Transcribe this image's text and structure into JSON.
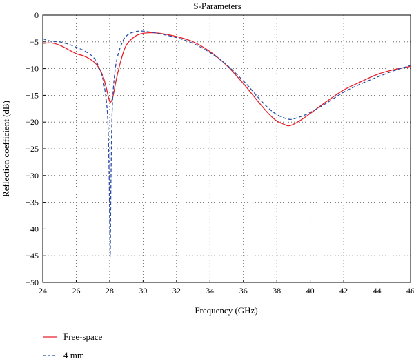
{
  "chart_data": {
    "type": "line",
    "title": "S-Parameters",
    "xlabel": "Frequency (GHz)",
    "ylabel": "Reflection coefficient (dB)",
    "xlim": [
      24,
      46
    ],
    "ylim": [
      -50,
      0
    ],
    "xticks": [
      24,
      26,
      28,
      30,
      32,
      34,
      36,
      38,
      40,
      42,
      44,
      46
    ],
    "yticks": [
      0,
      -5,
      -10,
      -15,
      -20,
      -25,
      -30,
      -35,
      -40,
      -45,
      -50
    ],
    "xtick_labels": [
      "24",
      "26",
      "28",
      "30",
      "32",
      "34",
      "36",
      "38",
      "40",
      "42",
      "44",
      "46"
    ],
    "ytick_labels": [
      "0",
      "−5",
      "−10",
      "−15",
      "−20",
      "−25",
      "−30",
      "−35",
      "−40",
      "−45",
      "−50"
    ],
    "grid": true,
    "legend_position": "bottom-left",
    "series": [
      {
        "name": "Free-space",
        "color": "#e8202a",
        "dash": "solid",
        "x": [
          24,
          24.5,
          25,
          25.5,
          26,
          26.5,
          27,
          27.3,
          27.6,
          27.8,
          27.95,
          28.05,
          28.2,
          28.4,
          28.7,
          29,
          29.5,
          30,
          30.5,
          31,
          32,
          33,
          34,
          35,
          36,
          36.5,
          37,
          37.5,
          38,
          38.5,
          38.7,
          39,
          39.5,
          40,
          41,
          42,
          43,
          44,
          45,
          46
        ],
        "y": [
          -5.3,
          -5.2,
          -5.6,
          -6.4,
          -7.2,
          -7.7,
          -8.6,
          -9.6,
          -11.4,
          -13.6,
          -15.6,
          -16.3,
          -15.2,
          -12.0,
          -8.2,
          -5.6,
          -4.0,
          -3.4,
          -3.3,
          -3.4,
          -4.0,
          -5.0,
          -6.8,
          -9.4,
          -12.8,
          -14.7,
          -16.6,
          -18.4,
          -19.8,
          -20.5,
          -20.7,
          -20.4,
          -19.5,
          -18.4,
          -16.1,
          -14.0,
          -12.5,
          -11.1,
          -10.2,
          -9.6
        ]
      },
      {
        "name": "4 mm",
        "color": "#2b4fa8",
        "dash": "dashed",
        "x": [
          24,
          24.5,
          25,
          25.5,
          26,
          26.5,
          27,
          27.3,
          27.6,
          27.8,
          27.9,
          27.97,
          28.03,
          28.08,
          28.15,
          28.3,
          28.5,
          28.8,
          29,
          29.3,
          29.7,
          30,
          30.5,
          31,
          32,
          33,
          34,
          35,
          36,
          36.5,
          37,
          37.5,
          38,
          38.5,
          38.8,
          39,
          39.5,
          40,
          41,
          42,
          43,
          44,
          45,
          46
        ],
        "y": [
          -4.4,
          -4.9,
          -5.0,
          -5.4,
          -6.0,
          -6.7,
          -7.8,
          -9.3,
          -12.0,
          -16.0,
          -20.5,
          -30.0,
          -45.2,
          -31.0,
          -18.0,
          -11.0,
          -7.4,
          -4.8,
          -3.9,
          -3.3,
          -3.0,
          -3.0,
          -3.2,
          -3.5,
          -4.2,
          -5.3,
          -7.0,
          -9.3,
          -12.3,
          -14.0,
          -15.8,
          -17.4,
          -18.6,
          -19.3,
          -19.5,
          -19.4,
          -18.9,
          -18.2,
          -16.4,
          -14.4,
          -12.9,
          -11.6,
          -10.4,
          -9.4
        ]
      }
    ]
  }
}
